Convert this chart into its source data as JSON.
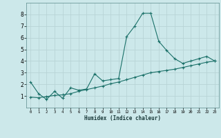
{
  "xlabel": "Humidex (Indice chaleur)",
  "ylabel": "",
  "background_color": "#cce8ea",
  "grid_color": "#b8d4d6",
  "line_color": "#1a7068",
  "xlim": [
    -0.5,
    23.5
  ],
  "ylim": [
    0,
    9
  ],
  "xticks": [
    0,
    1,
    2,
    3,
    4,
    5,
    6,
    7,
    8,
    9,
    10,
    11,
    12,
    13,
    14,
    15,
    16,
    17,
    18,
    19,
    20,
    21,
    22,
    23
  ],
  "yticks": [
    1,
    2,
    3,
    4,
    5,
    6,
    7,
    8
  ],
  "curve1_x": [
    0,
    1,
    2,
    3,
    4,
    5,
    6,
    7,
    8,
    9,
    10,
    11,
    12,
    13,
    14,
    15,
    16,
    17,
    18,
    19,
    20,
    21,
    22,
    23
  ],
  "curve1_y": [
    2.2,
    1.2,
    0.7,
    1.4,
    0.8,
    1.7,
    1.5,
    1.6,
    2.9,
    2.3,
    2.4,
    2.5,
    6.1,
    7.0,
    8.1,
    8.1,
    5.7,
    4.9,
    4.2,
    3.8,
    4.0,
    4.2,
    4.4,
    4.0
  ],
  "curve2_x": [
    0,
    1,
    2,
    3,
    4,
    5,
    6,
    7,
    8,
    9,
    10,
    11,
    12,
    13,
    14,
    15,
    16,
    17,
    18,
    19,
    20,
    21,
    22,
    23
  ],
  "curve2_y": [
    0.9,
    0.85,
    0.95,
    1.05,
    1.1,
    1.2,
    1.4,
    1.55,
    1.7,
    1.85,
    2.05,
    2.2,
    2.4,
    2.6,
    2.8,
    3.0,
    3.1,
    3.2,
    3.3,
    3.45,
    3.6,
    3.75,
    3.9,
    4.0
  ]
}
